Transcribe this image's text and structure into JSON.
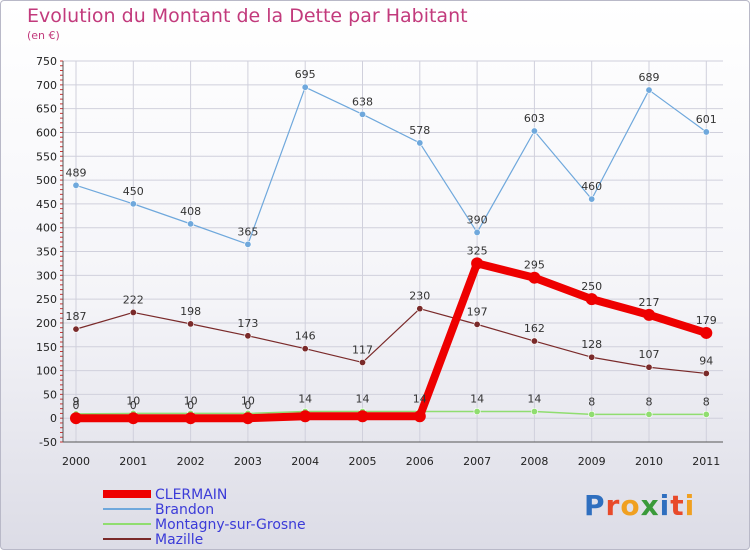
{
  "header": {
    "title": "Evolution du Montant de la Dette par Habitant",
    "subtitle": "(en €)"
  },
  "logo": {
    "text": "Proxiti",
    "letter_colors": [
      "#2f6fbf",
      "#e84a2a",
      "#f0a020",
      "#3a9a3a",
      "#2f6fbf",
      "#e84a2a",
      "#f0a020"
    ]
  },
  "chart_data": {
    "type": "line",
    "title": "Evolution du Montant de la Dette par Habitant",
    "ylabel": "(en €)",
    "xlabel": "",
    "x": [
      "2000",
      "2001",
      "2002",
      "2003",
      "2004",
      "2005",
      "2006",
      "2007",
      "2008",
      "2009",
      "2010",
      "2011"
    ],
    "ylim": [
      -50,
      750
    ],
    "yticks": [
      -50,
      0,
      50,
      100,
      150,
      200,
      250,
      300,
      350,
      400,
      450,
      500,
      550,
      600,
      650,
      700,
      750
    ],
    "grid": true,
    "legend_position": "bottom-left",
    "series": [
      {
        "name": "Montagny-sur-Grosne",
        "color": "#90dd70",
        "values": [
          9,
          10,
          10,
          10,
          14,
          14,
          14,
          14,
          14,
          8,
          8,
          8
        ],
        "labels": [
          "9",
          "10",
          "10",
          "10",
          "14",
          "14",
          "14",
          "14",
          "14",
          "8",
          "8",
          "8"
        ]
      },
      {
        "name": "Mazille",
        "color": "#7a2a2a",
        "values": [
          187,
          222,
          198,
          173,
          146,
          117,
          230,
          197,
          162,
          128,
          107,
          94
        ],
        "labels": [
          "187",
          "222",
          "198",
          "173",
          "146",
          "117",
          "230",
          "197",
          "162",
          "128",
          "107",
          "94"
        ]
      },
      {
        "name": "Brandon",
        "color": "#6fa8dc",
        "values": [
          489,
          450,
          408,
          365,
          695,
          638,
          578,
          390,
          603,
          460,
          689,
          601
        ],
        "labels": [
          "489",
          "450",
          "408",
          "365",
          "695",
          "638",
          "578",
          "390",
          "603",
          "460",
          "689",
          "601"
        ]
      },
      {
        "name": "CLERMAIN",
        "color": "#ee0000",
        "values": [
          0,
          0,
          0,
          0,
          4,
          4,
          4,
          325,
          295,
          250,
          217,
          179
        ],
        "labels": [
          "0",
          "0",
          "0",
          "0",
          "",
          "",
          "",
          "325",
          "295",
          "250",
          "217",
          "179"
        ]
      }
    ],
    "legend_order": [
      "CLERMAIN",
      "Brandon",
      "Montagny-sur-Grosne",
      "Mazille"
    ]
  }
}
